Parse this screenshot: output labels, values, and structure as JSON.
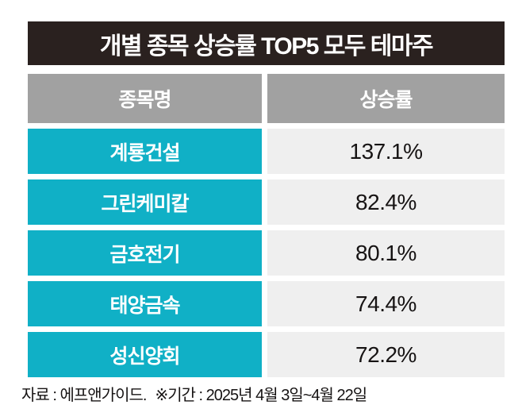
{
  "title": "개별 종목 상승률 TOP5 모두 테마주",
  "table": {
    "headers": [
      {
        "label": "종목명"
      },
      {
        "label": "상승률"
      }
    ],
    "rows": [
      {
        "name": "계룡건설",
        "value": "137.1%"
      },
      {
        "name": "그린케미칼",
        "value": "82.4%"
      },
      {
        "name": "금호전기",
        "value": "80.1%"
      },
      {
        "name": "태양금속",
        "value": "74.4%"
      },
      {
        "name": "성신양회",
        "value": "72.2%"
      }
    ]
  },
  "footer": {
    "source": "자료 : 에프앤가이드.",
    "period": "※기간 : 2025년 4월 3일~4월 22일"
  },
  "colors": {
    "title_bg": "#2a211f",
    "header_bg": "#a1a1a1",
    "accent_teal": "#10b0c6",
    "value_bg": "#efefef",
    "text_dark": "#161313",
    "text_light": "#ffffff"
  },
  "chart_data": {
    "type": "table",
    "title": "개별 종목 상승률 TOP5 모두 테마주",
    "columns": [
      "종목명",
      "상승률"
    ],
    "rows": [
      [
        "계룡건설",
        "137.1%"
      ],
      [
        "그린케미칼",
        "82.4%"
      ],
      [
        "금호전기",
        "80.1%"
      ],
      [
        "태양금속",
        "74.4%"
      ],
      [
        "성신양회",
        "72.2%"
      ]
    ],
    "values_numeric": [
      137.1,
      82.4,
      80.1,
      74.4,
      72.2
    ],
    "unit": "%",
    "source": "자료 : 에프앤가이드.",
    "period": "※기간 : 2025년 4월 3일~4월 22일"
  }
}
